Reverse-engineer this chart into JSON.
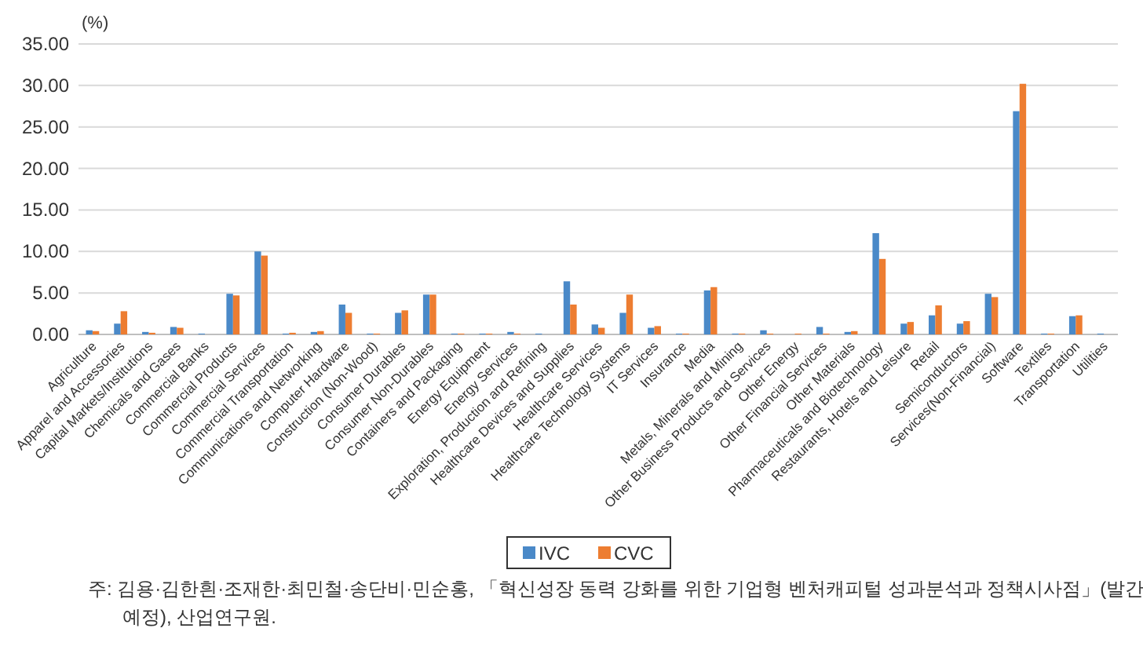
{
  "chart_data": {
    "type": "bar",
    "ylabel": "(%)",
    "categories": [
      "Agriculture",
      "Apparel and Accessories",
      "Capital Markets/Institutions",
      "Chemicals and Gases",
      "Commercial Banks",
      "Commercial Products",
      "Commercial Services",
      "Commercial Transportation",
      "Communications and Networking",
      "Computer Hardware",
      "Construction (Non-Wood)",
      "Consumer Durables",
      "Consumer Non-Durables",
      "Containers and Packaging",
      "Energy Equipment",
      "Energy Services",
      "Exploration, Production and Refining",
      "Healthcare Devices and Supplies",
      "Healthcare Services",
      "Healthcare Technology Systems",
      "IT Services",
      "Insurance",
      "Media",
      "Metals, Minerals and Mining",
      "Other Business Products and Services",
      "Other Energy",
      "Other Financial Services",
      "Other Materials",
      "Pharmaceuticals and Biotechnology",
      "Restaurants, Hotels and Leisure",
      "Retail",
      "Semiconductors",
      "Services(Non-Financial)",
      "Software",
      "Textiles",
      "Transportation",
      "Utilities"
    ],
    "series": [
      {
        "name": "IVC",
        "color": "#4a89c8",
        "values": [
          0.5,
          1.3,
          0.3,
          0.9,
          0.1,
          4.9,
          10.0,
          0.1,
          0.3,
          3.6,
          0.1,
          2.6,
          4.8,
          0.1,
          0.1,
          0.3,
          0.1,
          6.4,
          1.2,
          2.6,
          0.8,
          0.1,
          5.3,
          0.1,
          0.5,
          0.0,
          0.9,
          0.3,
          12.2,
          1.3,
          2.3,
          1.3,
          4.9,
          26.9,
          0.1,
          2.2,
          0.1
        ]
      },
      {
        "name": "CVC",
        "color": "#ed7d31",
        "values": [
          0.4,
          2.8,
          0.2,
          0.8,
          0.0,
          4.7,
          9.5,
          0.2,
          0.4,
          2.6,
          0.1,
          2.9,
          4.8,
          0.1,
          0.1,
          0.1,
          0.0,
          3.6,
          0.8,
          4.8,
          1.0,
          0.1,
          5.7,
          0.1,
          0.1,
          0.1,
          0.1,
          0.4,
          9.1,
          1.5,
          3.5,
          1.6,
          4.5,
          30.2,
          0.1,
          2.3,
          0.0
        ]
      }
    ],
    "ylim": [
      0,
      35
    ],
    "yticks": [
      {
        "value": 0,
        "label": "0.00"
      },
      {
        "value": 5,
        "label": "5.00"
      },
      {
        "value": 10,
        "label": "10.00"
      },
      {
        "value": 15,
        "label": "15.00"
      },
      {
        "value": 20,
        "label": "20.00"
      },
      {
        "value": 25,
        "label": "25.00"
      },
      {
        "value": 30,
        "label": "30.00"
      },
      {
        "value": 35,
        "label": "35.00"
      }
    ],
    "grid": "y",
    "legend": "bottom",
    "annotations": [
      "주: 김용·김한흰·조재한·최민철·송단비·민순홍, 「혁신성장 동력 강화를 위한 기업형 벤처캐피털 성과분석과 정책시사점」(발간 예정), 산업연구원."
    ]
  }
}
